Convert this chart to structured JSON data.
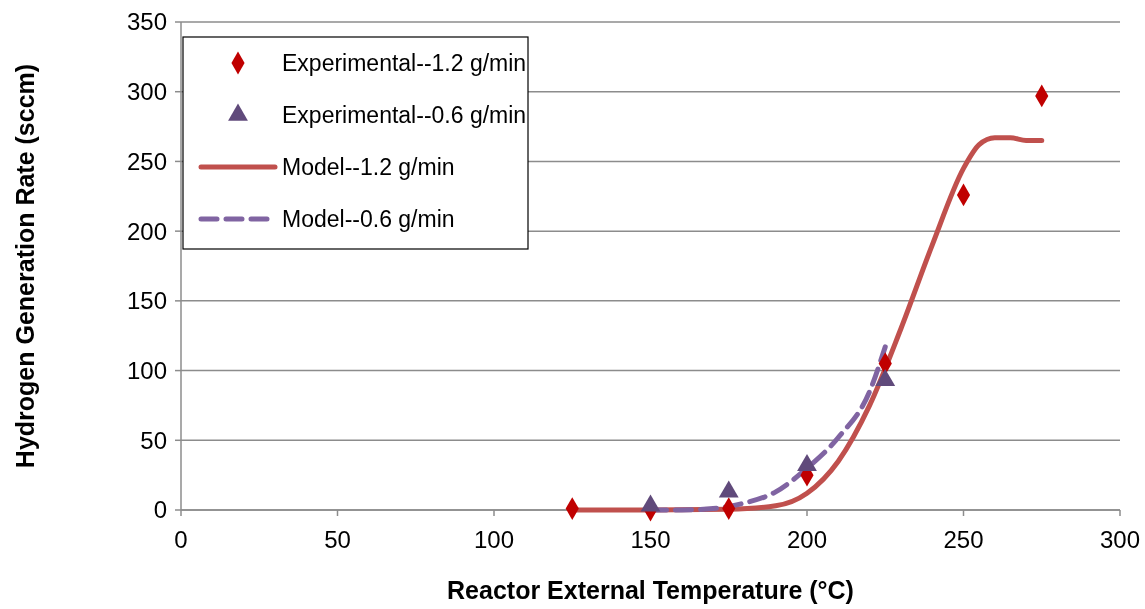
{
  "chart_data": {
    "type": "scatter",
    "xlabel": "Reactor External Temperature (°C)",
    "ylabel": "Hydrogen Generation Rate (sccm)",
    "xlim": [
      0,
      300
    ],
    "xticks": [
      0,
      50,
      100,
      150,
      200,
      250,
      300
    ],
    "ylim": [
      0,
      350
    ],
    "yticks": [
      0,
      50,
      100,
      150,
      200,
      250,
      300,
      350
    ],
    "grid": "y",
    "legend": "top left",
    "series": [
      {
        "name": "Experimental--1.2 g/min",
        "marker": "diamond",
        "color": "#c00000",
        "x": [
          125,
          150,
          175,
          200,
          225,
          250,
          275
        ],
        "values": [
          1,
          0,
          1,
          25,
          105,
          226,
          297
        ]
      },
      {
        "name": "Experimental--0.6 g/min",
        "marker": "triangle",
        "color": "#604a7b",
        "x": [
          150,
          175,
          200,
          225
        ],
        "values": [
          3,
          13,
          32,
          93
        ]
      },
      {
        "name": "Model--1.2 g/min",
        "type": "line",
        "marker": "none",
        "line_style": "solid",
        "color": "#c0504d",
        "x": [
          125,
          150,
          175,
          190,
          200,
          210,
          220,
          230,
          240,
          250,
          255,
          260,
          265,
          270,
          275
        ],
        "values": [
          0,
          0,
          0.5,
          3,
          12,
          35,
          75,
          130,
          190,
          245,
          262,
          267,
          267,
          265,
          265
        ]
      },
      {
        "name": "Model--0.6 g/min",
        "type": "line",
        "marker": "none",
        "line_style": "dashed",
        "color": "#8064a2",
        "x": [
          150,
          160,
          170,
          180,
          190,
          200,
          210,
          220,
          225
        ],
        "values": [
          0,
          0,
          1,
          5,
          13,
          30,
          52,
          85,
          117
        ]
      }
    ]
  }
}
